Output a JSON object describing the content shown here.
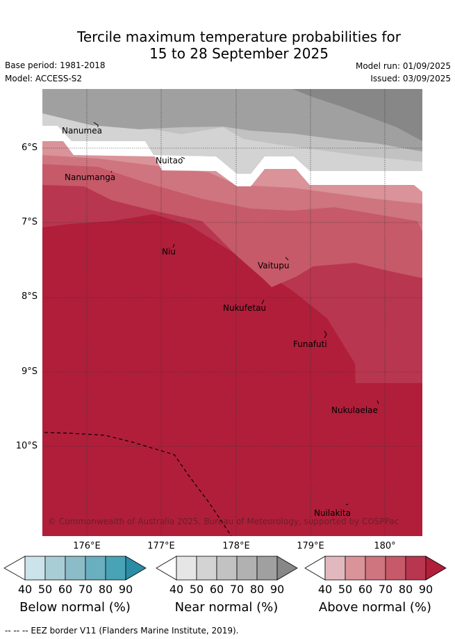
{
  "title": {
    "line1": "Tercile maximum temperature probabilities for",
    "line2": "15 to 28 September 2025"
  },
  "meta": {
    "base_period": "Base period: 1981-2018",
    "model": "Model: ACCESS-S2",
    "model_run": "Model run: 01/09/2025",
    "issued": "Issued: 03/09/2025"
  },
  "map": {
    "lat_labels": [
      "6°S",
      "7°S",
      "8°S",
      "9°S",
      "10°S"
    ],
    "lon_labels": [
      "176°E",
      "177°E",
      "178°E",
      "179°E",
      "180°"
    ],
    "places": [
      "Nanumea",
      "Nuitao",
      "Nanumanga",
      "Niu",
      "Vaitupu",
      "Nukufetau",
      "Funafuti",
      "Nukulaelae",
      "Nuilakita"
    ],
    "copyright": "© Commonwealth of Australia 2025, Bureau of Meteorology, supported by COSPPac"
  },
  "colorbars": {
    "below": {
      "label": "Below normal (%)",
      "ticks": [
        "40",
        "50",
        "60",
        "70",
        "80",
        "90"
      ],
      "colors": [
        "#ffffff",
        "#cce3ea",
        "#a9cdd5",
        "#8bbcc8",
        "#6aafbf",
        "#48a3b6",
        "#2a8ca5"
      ]
    },
    "near": {
      "label": "Near normal (%)",
      "ticks": [
        "40",
        "50",
        "60",
        "70",
        "80",
        "90"
      ],
      "colors": [
        "#ffffff",
        "#e6e6e6",
        "#d3d3d3",
        "#c2c2c2",
        "#b1b1b1",
        "#a0a0a0",
        "#878787"
      ]
    },
    "above": {
      "label": "Above normal (%)",
      "ticks": [
        "40",
        "50",
        "60",
        "70",
        "80",
        "90"
      ],
      "colors": [
        "#ffffff",
        "#e2b8bf",
        "#d99399",
        "#cf7580",
        "#c65a68",
        "#b93650",
        "#b01e3a"
      ]
    }
  },
  "footer": "--  --  -- EEZ border V11 (Flanders Marine Institute, 2019)."
}
